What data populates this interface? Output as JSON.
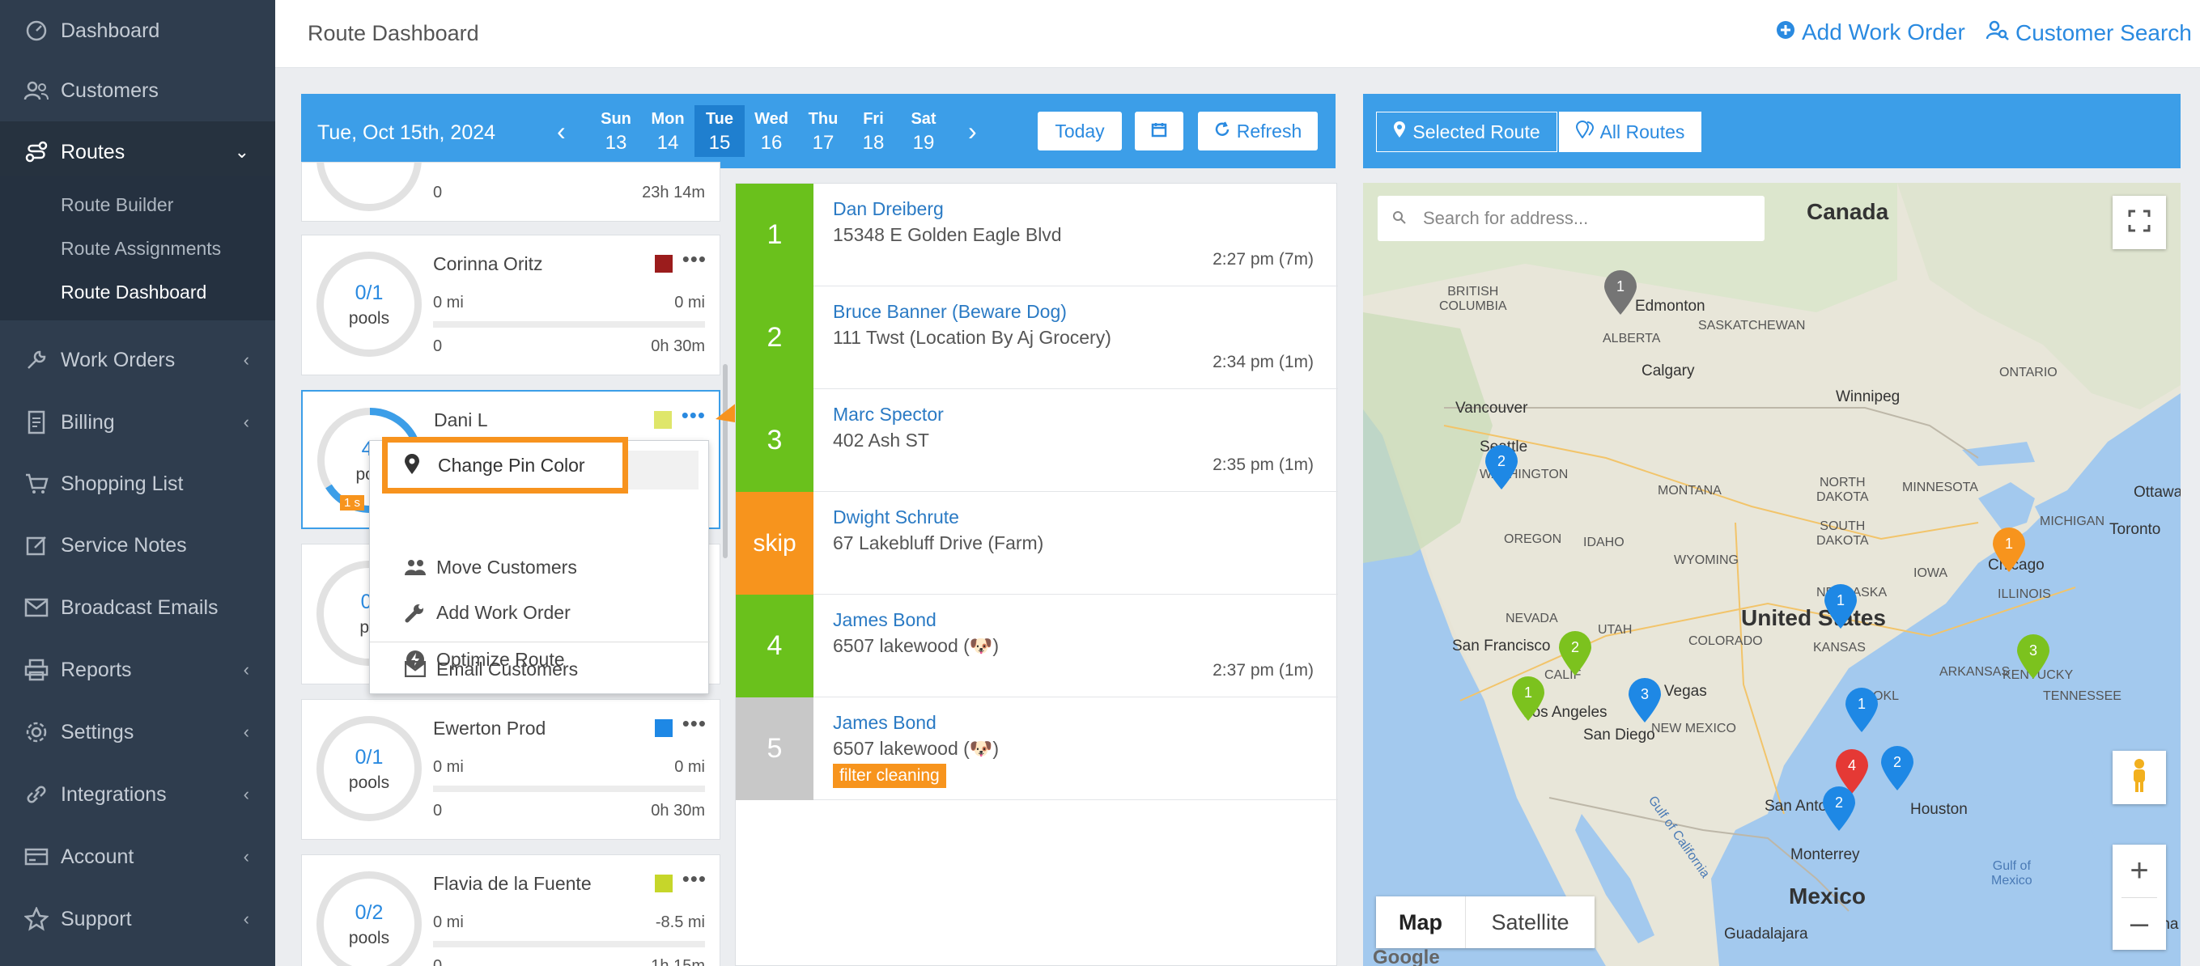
{
  "sidebar": {
    "items": [
      {
        "label": "Dashboard",
        "icon": "dashboard-icon"
      },
      {
        "label": "Customers",
        "icon": "customers-icon"
      },
      {
        "label": "Routes",
        "icon": "routes-icon",
        "expanded": true
      },
      {
        "label": "Work Orders",
        "icon": "wrench-icon"
      },
      {
        "label": "Billing",
        "icon": "billing-icon"
      },
      {
        "label": "Shopping List",
        "icon": "cart-icon"
      },
      {
        "label": "Service Notes",
        "icon": "notes-icon"
      },
      {
        "label": "Broadcast Emails",
        "icon": "mail-icon"
      },
      {
        "label": "Reports",
        "icon": "printer-icon"
      },
      {
        "label": "Settings",
        "icon": "gear-icon"
      },
      {
        "label": "Integrations",
        "icon": "link-icon"
      },
      {
        "label": "Account",
        "icon": "card-icon"
      },
      {
        "label": "Support",
        "icon": "star-icon"
      }
    ],
    "routes_sub": [
      "Route Builder",
      "Route Assignments",
      "Route Dashboard"
    ]
  },
  "header": {
    "title": "Route Dashboard",
    "add_work_order": "Add Work Order",
    "customer_search": "Customer Search"
  },
  "datebar": {
    "current_date": "Tue, Oct 15th, 2024",
    "days": [
      {
        "name": "Sun",
        "num": "13"
      },
      {
        "name": "Mon",
        "num": "14"
      },
      {
        "name": "Tue",
        "num": "15",
        "selected": true
      },
      {
        "name": "Wed",
        "num": "16"
      },
      {
        "name": "Thu",
        "num": "17"
      },
      {
        "name": "Fri",
        "num": "18"
      },
      {
        "name": "Sat",
        "num": "19"
      }
    ],
    "today": "Today",
    "refresh": "Refresh"
  },
  "routes": [
    {
      "name": "",
      "color": "",
      "frac": "",
      "unit": "",
      "miles_left": "",
      "miles_right": "",
      "stops": "0",
      "time": "23h 14m"
    },
    {
      "name": "Corinna Oritz",
      "color": "#9b1c1c",
      "frac": "0/1",
      "unit": "pools",
      "miles_left": "0 mi",
      "miles_right": "0 mi",
      "stops": "0",
      "time": "0h 30m"
    },
    {
      "name": "Dani L",
      "color": "#dfe66a",
      "frac": "4/",
      "unit": "poo",
      "badge": "1 s",
      "miles_left": "",
      "miles_right": "",
      "stops": "",
      "time": ""
    },
    {
      "name": "",
      "color": "",
      "frac": "0/",
      "unit": "po",
      "miles_left": "",
      "miles_right": "",
      "stops": "",
      "time": ""
    },
    {
      "name": "Ewerton Prod",
      "color": "#1e88e5",
      "frac": "0/1",
      "unit": "pools",
      "miles_left": "0 mi",
      "miles_right": "0 mi",
      "stops": "0",
      "time": "0h 30m"
    },
    {
      "name": "Flavia de la Fuente",
      "color": "#c6d62a",
      "frac": "0/2",
      "unit": "pools",
      "miles_left": "0 mi",
      "miles_right": "-8.5 mi",
      "stops": "0",
      "time": "1h 15m"
    }
  ],
  "context_menu": {
    "items": [
      "Change Pin Color",
      "Move Customers",
      "Add Work Order",
      "Optimize Route",
      "Email Customers"
    ]
  },
  "stops": [
    {
      "num": "1",
      "name": "Dan Dreiberg",
      "address": "15348 E Golden Eagle Blvd",
      "time": "2:27 pm (7m)",
      "color": "#6ac11c"
    },
    {
      "num": "2",
      "name": "Bruce Banner (Beware Dog)",
      "address": "111 Twst (Location By Aj Grocery)",
      "time": "2:34 pm (1m)",
      "color": "#6ac11c"
    },
    {
      "num": "3",
      "name": "Marc Spector",
      "address": "402 Ash ST",
      "time": "2:35 pm (1m)",
      "color": "#6ac11c"
    },
    {
      "num": "skip",
      "name": "Dwight Schrute",
      "address": "67 Lakebluff Drive (Farm)",
      "time": "",
      "color": "#f7941d"
    },
    {
      "num": "4",
      "name": "James Bond",
      "address": "6507 lakewood (🐶)",
      "time": "2:37 pm (1m)",
      "color": "#6ac11c"
    },
    {
      "num": "5",
      "name": "James Bond",
      "address": "6507 lakewood (🐶)",
      "time": "",
      "tag": "filter cleaning",
      "color": "#c8c8c8"
    }
  ],
  "map": {
    "selected_route": "Selected Route",
    "all_routes": "All Routes",
    "search_placeholder": "Search for address...",
    "map_type": "Map",
    "satellite": "Satellite",
    "labels": {
      "canada": "Canada",
      "united_states": "United States",
      "mexico": "Mexico",
      "edmonton": "Edmonton",
      "calgary": "Calgary",
      "vancouver": "Vancouver",
      "seattle": "Seattle",
      "winnipeg": "Winnipeg",
      "ottawa": "Ottawa",
      "toronto": "Toronto",
      "chicago": "Chicago",
      "san_francisco": "San Francisco",
      "los_angeles": "Los Angeles",
      "las_vegas": "Las Vegas",
      "san_diego": "San Diego",
      "san_antonio": "San Anto",
      "houston": "Houston",
      "monterrey": "Monterrey",
      "guadalajara": "Guadalajara",
      "havana": "Havana",
      "british_columbia": "BRITISH\nCOLUMBIA",
      "alberta": "ALBERTA",
      "saskatchewan": "SASKATCHEWAN",
      "ontario": "ONTARIO",
      "washington": "WASHINGTON",
      "oregon": "OREGON",
      "idaho": "IDAHO",
      "montana": "MONTANA",
      "wyoming": "WYOMING",
      "nevada": "NEVADA",
      "utah": "UTAH",
      "california": "CALIF",
      "colorado": "COLORADO",
      "kansas": "KANSAS",
      "new_mexico": "NEW MEXICO",
      "north_dakota": "NORTH\nDAKOTA",
      "south_dakota": "SOUTH\nDAKOTA",
      "nebraska": "NEBRASKA",
      "minnesota": "MINNESOTA",
      "iowa": "IOWA",
      "michigan": "MICHIGAN",
      "illinois": "ILLINOIS",
      "arkansas": "ARKANSAS",
      "tennessee": "TENNESSEE",
      "kentucky": "KENTUCKY",
      "gulf_mexico": "Gulf of\nMexico",
      "gulf_california": "Gulf of California",
      "google": "Google",
      "oklahoma": "OKL"
    },
    "pins": [
      {
        "label": "1",
        "color": "#757575"
      },
      {
        "label": "2",
        "color": "#1e88e5"
      },
      {
        "label": "1",
        "color": "#1e88e5"
      },
      {
        "label": "1",
        "color": "#f7941d"
      },
      {
        "label": "2",
        "color": "#7cc21e"
      },
      {
        "label": "3",
        "color": "#7cc21e"
      },
      {
        "label": "1",
        "color": "#7cc21e"
      },
      {
        "label": "3",
        "color": "#1e88e5"
      },
      {
        "label": "1",
        "color": "#1e88e5"
      },
      {
        "label": "4",
        "color": "#e53935"
      },
      {
        "label": "2",
        "color": "#1e88e5"
      },
      {
        "label": "2",
        "color": "#1e88e5"
      }
    ]
  },
  "colors": {
    "accent": "#3c9ee8",
    "sidebar": "#2f3d4e",
    "highlight": "#f7931e"
  }
}
